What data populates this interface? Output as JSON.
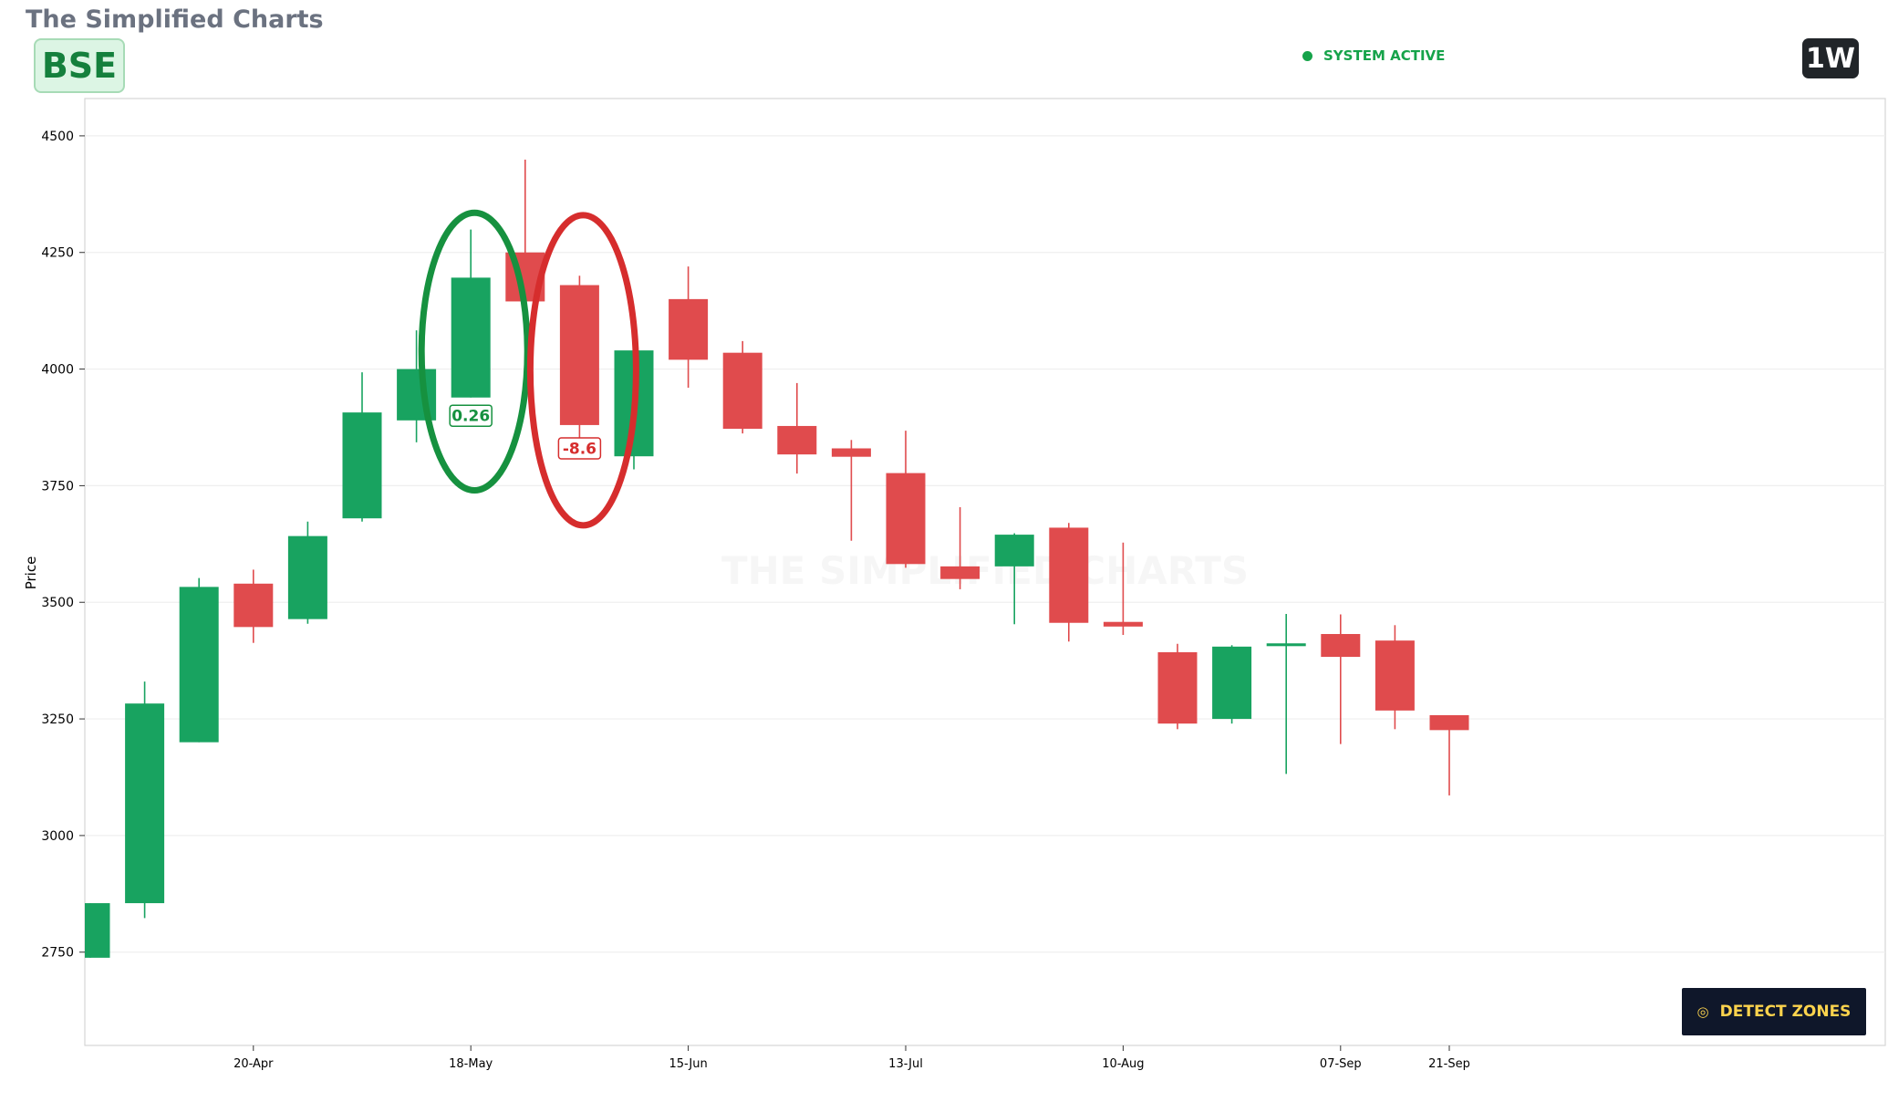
{
  "header": {
    "app_title": "The Simplified Charts",
    "ticker": "BSE",
    "status_label": "SYSTEM ACTIVE",
    "timeframe": "1W"
  },
  "watermark": "THE SIMPLIFIED CHARTS",
  "detect_button": {
    "label": "DETECT ZONES",
    "icon": "target-icon"
  },
  "colors": {
    "up": "#18a360",
    "down": "#e04b4d",
    "status": "#16a34a",
    "button_bg": "#0f172a",
    "button_text": "#fcd34d",
    "zone_green": "#16913f",
    "zone_red": "#d62d2d"
  },
  "chart_data": {
    "type": "candlestick",
    "ylabel": "Price",
    "ylim": [
      2550,
      4580
    ],
    "yticks": [
      2750,
      3000,
      3250,
      3500,
      3750,
      4000,
      4250,
      4500
    ],
    "grid": true,
    "x_tick_labels": [
      "20-Apr",
      "18-May",
      "15-Jun",
      "13-Jul",
      "10-Aug",
      "07-Sep",
      "21-Sep"
    ],
    "x_tick_index": [
      3,
      7,
      11,
      15,
      19,
      23,
      25
    ],
    "candles": [
      {
        "open": 2738,
        "high": 2855,
        "low": 2738,
        "close": 2855
      },
      {
        "open": 2855,
        "high": 3330,
        "low": 2823,
        "close": 3283
      },
      {
        "open": 3200,
        "high": 3552,
        "low": 3200,
        "close": 3533
      },
      {
        "open": 3540,
        "high": 3570,
        "low": 3413,
        "close": 3447
      },
      {
        "open": 3464,
        "high": 3673,
        "low": 3454,
        "close": 3642
      },
      {
        "open": 3680,
        "high": 3993,
        "low": 3673,
        "close": 3907
      },
      {
        "open": 3890,
        "high": 4083,
        "low": 3843,
        "close": 4000
      },
      {
        "open": 3939,
        "high": 4299,
        "low": 3939,
        "close": 4196
      },
      {
        "open": 4250,
        "high": 4449,
        "low": 4145,
        "close": 4145
      },
      {
        "open": 4180,
        "high": 4200,
        "low": 3847,
        "close": 3880
      },
      {
        "open": 3813,
        "high": 4040,
        "low": 3785,
        "close": 4040
      },
      {
        "open": 4150,
        "high": 4220,
        "low": 3960,
        "close": 4020
      },
      {
        "open": 4035,
        "high": 4060,
        "low": 3862,
        "close": 3872
      },
      {
        "open": 3878,
        "high": 3970,
        "low": 3776,
        "close": 3817
      },
      {
        "open": 3830,
        "high": 3848,
        "low": 3632,
        "close": 3812
      },
      {
        "open": 3777,
        "high": 3868,
        "low": 3574,
        "close": 3582
      },
      {
        "open": 3577,
        "high": 3704,
        "low": 3528,
        "close": 3550
      },
      {
        "open": 3577,
        "high": 3648,
        "low": 3453,
        "close": 3645
      },
      {
        "open": 3660,
        "high": 3670,
        "low": 3416,
        "close": 3456
      },
      {
        "open": 3458,
        "high": 3628,
        "low": 3430,
        "close": 3448
      },
      {
        "open": 3393,
        "high": 3411,
        "low": 3228,
        "close": 3240
      },
      {
        "open": 3250,
        "high": 3408,
        "low": 3240,
        "close": 3405
      },
      {
        "open": 3406,
        "high": 3475,
        "low": 3132,
        "close": 3412
      },
      {
        "open": 3432,
        "high": 3474,
        "low": 3196,
        "close": 3383
      },
      {
        "open": 3418,
        "high": 3451,
        "low": 3228,
        "close": 3268
      },
      {
        "open": 3258,
        "high": 3258,
        "low": 3086,
        "close": 3226
      }
    ],
    "annotations": [
      {
        "text": "0.26",
        "candle_index": 7,
        "price": 3900,
        "color": "green"
      },
      {
        "text": "-8.6",
        "candle_index": 9,
        "price": 3830,
        "color": "red"
      }
    ],
    "zones": [
      {
        "candle_index": 7,
        "price_top": 4335,
        "price_bottom": 3740,
        "color": "green"
      },
      {
        "candle_index": 9,
        "price_top": 4330,
        "price_bottom": 3665,
        "color": "red"
      }
    ]
  }
}
